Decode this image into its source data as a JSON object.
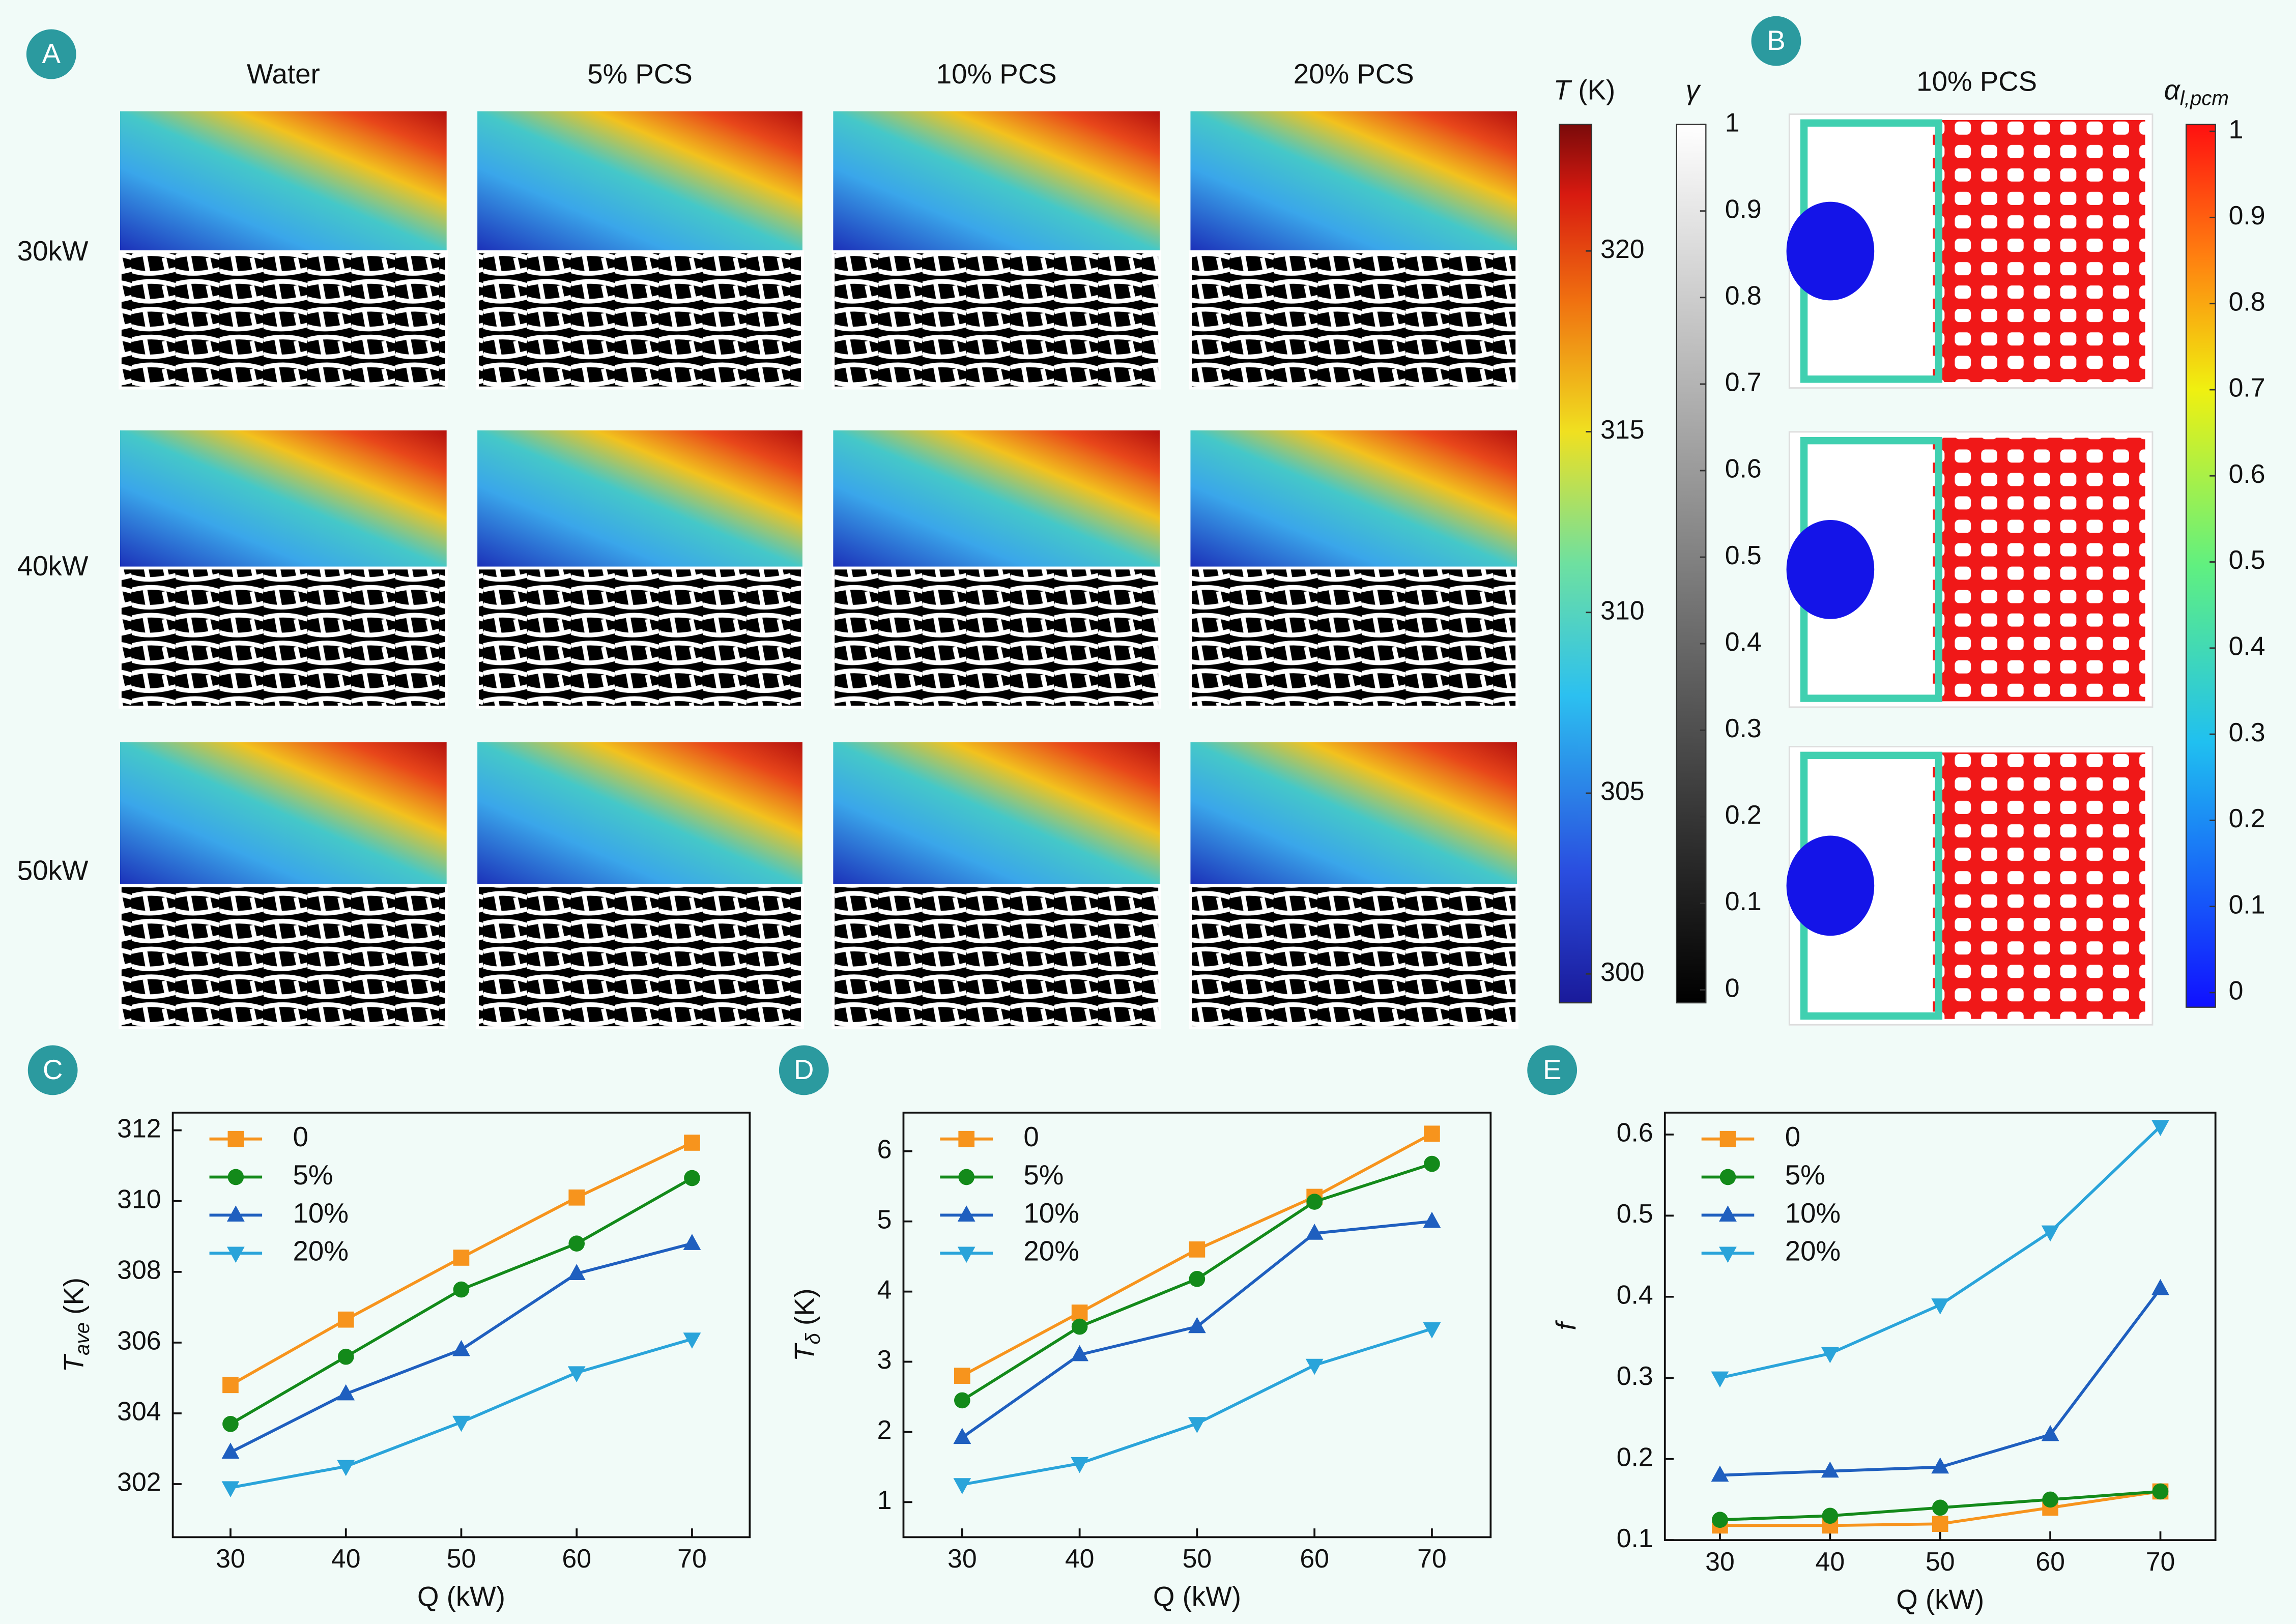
{
  "panel_labels": [
    "A",
    "B",
    "C",
    "D",
    "E"
  ],
  "panel_a": {
    "columns": [
      "Water",
      "5% PCS",
      "10% PCS",
      "20% PCS"
    ],
    "rows": [
      "30kW",
      "40kW",
      "50kW"
    ],
    "colorbars": [
      {
        "label_symbol": "T",
        "label_unit": "(K)",
        "ylim": [
          299.2,
          323.5
        ],
        "yticks": [
          300,
          305,
          310,
          315,
          320
        ]
      },
      {
        "label_symbol": "γ",
        "ylim": [
          -0.015,
          1
        ],
        "yticks": [
          0,
          0.1,
          0.2,
          0.3,
          0.4,
          0.5,
          0.6,
          0.7,
          0.8,
          0.9,
          1
        ]
      }
    ]
  },
  "panel_b": {
    "title": "10% PCS",
    "colorbar": {
      "label_symbol": "α",
      "label_subscript": "l,pcm",
      "ylim": [
        -0.017,
        1.008
      ],
      "yticks": [
        0,
        0.1,
        0.2,
        0.3,
        0.4,
        0.5,
        0.6,
        0.7,
        0.8,
        0.9,
        1
      ]
    }
  },
  "chart_data": [
    {
      "type": "line",
      "x_label": "Q (kW)",
      "y_label": {
        "symbol": "T",
        "subscript": "ave",
        "unit": "(K)"
      },
      "x": [
        30,
        40,
        50,
        60,
        70
      ],
      "xlim": [
        25,
        75
      ],
      "xticks": [
        30,
        40,
        50,
        60,
        70
      ],
      "ylim": [
        300.5,
        312.5
      ],
      "yticks": [
        302,
        304,
        306,
        308,
        310,
        312
      ],
      "legend": "upper left",
      "series": [
        {
          "name": "0",
          "color": "#f7941d",
          "marker": "square",
          "values": [
            304.8,
            306.65,
            308.4,
            310.1,
            311.65
          ]
        },
        {
          "name": "5%",
          "color": "#138a1a",
          "marker": "circle",
          "values": [
            303.7,
            305.6,
            307.5,
            308.8,
            310.65
          ]
        },
        {
          "name": "10%",
          "color": "#1f5fbf",
          "marker": "triangle-up",
          "values": [
            302.9,
            304.55,
            305.8,
            307.95,
            308.8
          ]
        },
        {
          "name": "20%",
          "color": "#2aa4da",
          "marker": "triangle-down",
          "values": [
            301.9,
            302.5,
            303.75,
            305.15,
            306.1
          ]
        }
      ]
    },
    {
      "type": "line",
      "x_label": "Q (kW)",
      "y_label": {
        "symbol": "T",
        "subscript": "δ",
        "unit": "(K)"
      },
      "x": [
        30,
        40,
        50,
        60,
        70
      ],
      "xlim": [
        25,
        75
      ],
      "xticks": [
        30,
        40,
        50,
        60,
        70
      ],
      "ylim": [
        0.5,
        6.55
      ],
      "yticks": [
        1,
        2,
        3,
        4,
        5,
        6
      ],
      "legend": "upper left",
      "series": [
        {
          "name": "0",
          "color": "#f7941d",
          "marker": "square",
          "values": [
            2.8,
            3.7,
            4.6,
            5.35,
            6.25
          ]
        },
        {
          "name": "5%",
          "color": "#138a1a",
          "marker": "circle",
          "values": [
            2.45,
            3.5,
            4.18,
            5.28,
            5.82
          ]
        },
        {
          "name": "10%",
          "color": "#1f5fbf",
          "marker": "triangle-up",
          "values": [
            1.92,
            3.1,
            3.5,
            4.83,
            5.0
          ]
        },
        {
          "name": "20%",
          "color": "#2aa4da",
          "marker": "triangle-down",
          "values": [
            1.25,
            1.55,
            2.12,
            2.95,
            3.47
          ]
        }
      ]
    },
    {
      "type": "line",
      "x_label": "Q (kW)",
      "y_label": {
        "symbol": "f"
      },
      "x": [
        30,
        40,
        50,
        60,
        70
      ],
      "xlim": [
        25,
        75
      ],
      "xticks": [
        30,
        40,
        50,
        60,
        70
      ],
      "ylim": [
        0.1,
        0.627
      ],
      "yticks": [
        0.1,
        0.2,
        0.3,
        0.4,
        0.5,
        0.6
      ],
      "legend": "upper left",
      "series": [
        {
          "name": "0",
          "color": "#f7941d",
          "marker": "square",
          "values": [
            0.118,
            0.118,
            0.12,
            0.14,
            0.16
          ]
        },
        {
          "name": "5%",
          "color": "#138a1a",
          "marker": "circle",
          "values": [
            0.125,
            0.13,
            0.14,
            0.15,
            0.16
          ]
        },
        {
          "name": "10%",
          "color": "#1f5fbf",
          "marker": "triangle-up",
          "values": [
            0.18,
            0.185,
            0.19,
            0.23,
            0.41
          ]
        },
        {
          "name": "20%",
          "color": "#2aa4da",
          "marker": "triangle-down",
          "values": [
            0.3,
            0.33,
            0.39,
            0.48,
            0.61
          ]
        }
      ]
    }
  ]
}
